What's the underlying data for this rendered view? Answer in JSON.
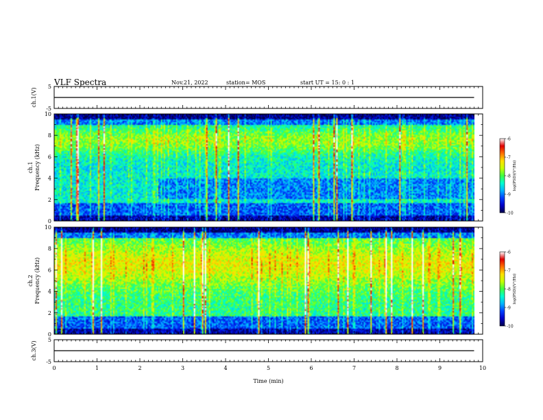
{
  "header": {
    "title": "VLF Spectra",
    "date": "Nov.21, 2022",
    "station": "station= MOS",
    "start_ut": "start  UT =  15: 0  : 1"
  },
  "colors": {
    "colormap": [
      "#00004a",
      "#0000c8",
      "#0040ff",
      "#00b4ff",
      "#00ffd0",
      "#40ff40",
      "#c8ff00",
      "#ffe000",
      "#ff7000",
      "#e00000",
      "#ffffff"
    ]
  },
  "chart_data": [
    {
      "type": "line",
      "id": "ch1-voltage",
      "ylabel": "ch.1(V)",
      "ylim": [
        -5,
        5
      ],
      "yticks": [
        "5",
        "-5"
      ],
      "xlim": [
        0,
        10
      ],
      "series": [
        {
          "x": [
            0,
            9.8
          ],
          "y": [
            0,
            0
          ]
        }
      ]
    },
    {
      "type": "heatmap",
      "id": "ch1-spectrogram",
      "ylabel": "ch.1\nFrequency (kHz)",
      "ylim": [
        0,
        10
      ],
      "yticks": [
        "0",
        "2",
        "4",
        "6",
        "8",
        "10"
      ],
      "xlim": [
        0,
        10
      ],
      "data_end_min": 9.8,
      "colorbar": {
        "label": "log(PSD)(V²/Hz)",
        "range": [
          -10,
          -6
        ],
        "ticks": [
          "-6",
          "-7",
          "-8",
          "-9",
          "-10"
        ]
      }
    },
    {
      "type": "heatmap",
      "id": "ch2-spectrogram",
      "ylabel": "ch.2\nFrequency (kHz)",
      "ylim": [
        0,
        10
      ],
      "yticks": [
        "0",
        "2",
        "4",
        "6",
        "8",
        "10"
      ],
      "xlim": [
        0,
        10
      ],
      "data_end_min": 9.8,
      "colorbar": {
        "label": "log(PSD)(V²/Hz)",
        "range": [
          -10,
          -6
        ],
        "ticks": [
          "-6",
          "-7",
          "-8",
          "-9",
          "-10"
        ]
      }
    },
    {
      "type": "line",
      "id": "ch3-voltage",
      "ylabel": "ch.3(V)",
      "ylim": [
        -5,
        5
      ],
      "yticks": [
        "5",
        "-5"
      ],
      "xlim": [
        0,
        10
      ],
      "xlabel": "Time (min)",
      "xticks": [
        "0",
        "1",
        "2",
        "3",
        "4",
        "5",
        "6",
        "7",
        "8",
        "9",
        "10"
      ],
      "series": [
        {
          "x": [
            0,
            9.8
          ],
          "y": [
            0,
            0
          ]
        }
      ]
    }
  ]
}
